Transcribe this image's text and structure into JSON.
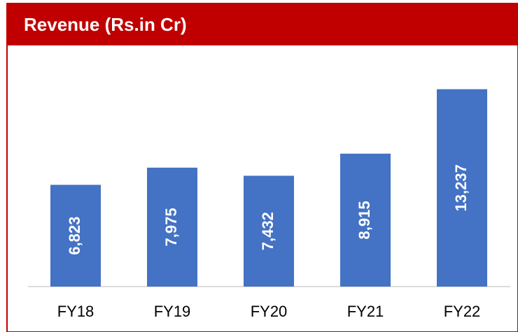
{
  "chart_data": {
    "type": "bar",
    "title": "Revenue (Rs.in Cr)",
    "categories": [
      "FY18",
      "FY19",
      "FY20",
      "FY21",
      "FY22"
    ],
    "values": [
      6823,
      7975,
      7432,
      8915,
      13237
    ],
    "value_labels": [
      "6,823",
      "7,975",
      "7,432",
      "8,915",
      "13,237"
    ],
    "color": "#4472c4",
    "ylim": [
      0,
      15000
    ]
  }
}
